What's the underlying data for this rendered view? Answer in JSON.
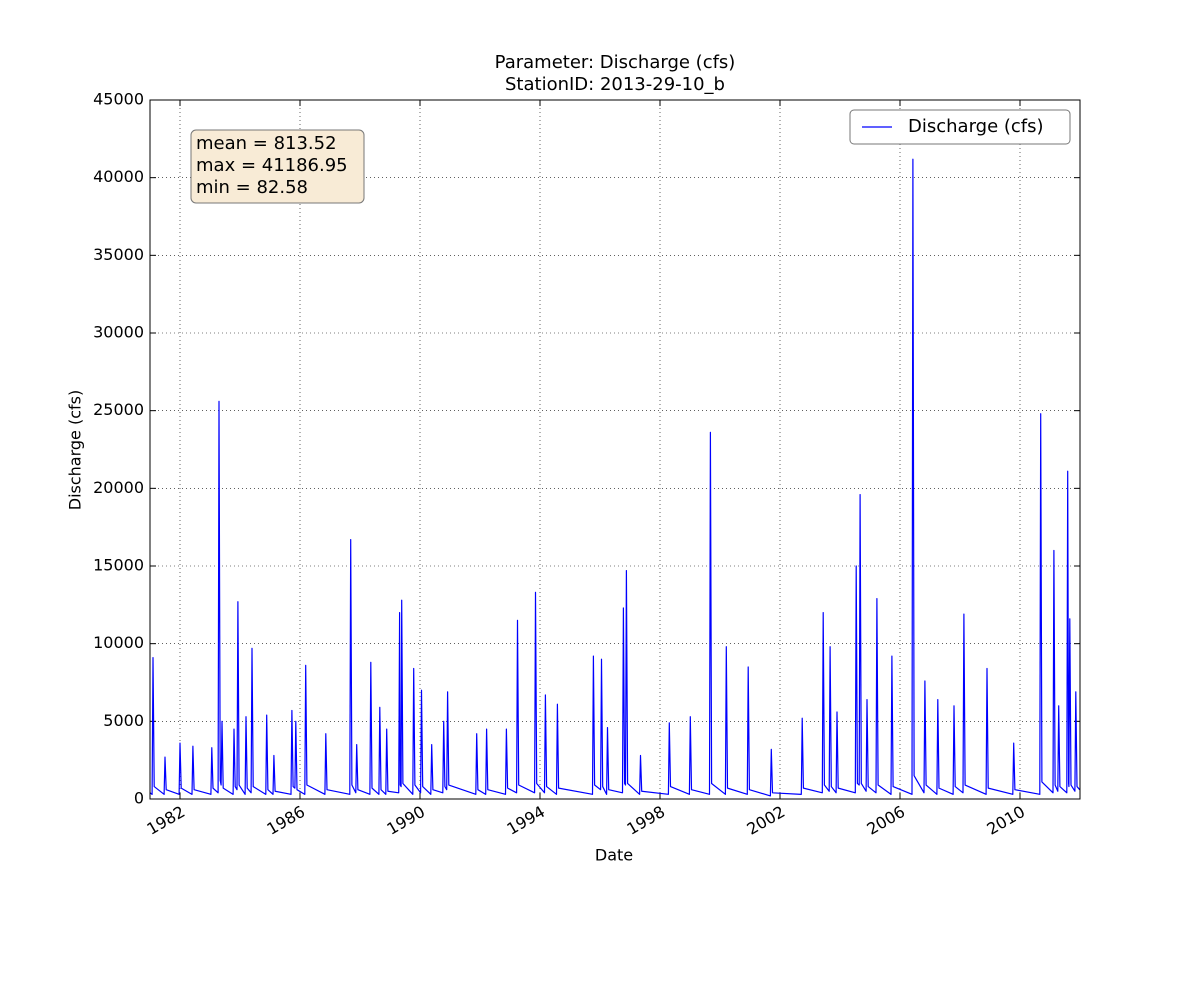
{
  "chart_data": {
    "type": "line",
    "title": "Parameter: Discharge (cfs)",
    "subtitle": "StationID: 2013-29-10_b",
    "x_label": "Date",
    "y_label": "Discharge (cfs)",
    "annotations": [
      "mean = 813.52",
      "max = 41186.95",
      "min = 82.58"
    ],
    "xlim": [
      1981.0,
      2012.0
    ],
    "xticks": [
      1982,
      1986,
      1990,
      1994,
      1998,
      2002,
      2006,
      2010
    ],
    "ylim": [
      0,
      45000
    ],
    "yticks": [
      0,
      5000,
      10000,
      15000,
      20000,
      25000,
      30000,
      35000,
      40000,
      45000
    ],
    "grid": true,
    "legend": "upper right",
    "x": [
      1981.0,
      1981.07,
      1981.1,
      1981.14,
      1981.47,
      1981.5,
      1981.54,
      1981.97,
      1982.0,
      1982.04,
      1982.4,
      1982.43,
      1982.47,
      1983.03,
      1983.06,
      1983.1,
      1983.27,
      1983.3,
      1983.34,
      1983.37,
      1983.4,
      1983.44,
      1983.77,
      1983.8,
      1983.84,
      1983.9,
      1983.93,
      1983.97,
      1984.17,
      1984.2,
      1984.24,
      1984.37,
      1984.4,
      1984.44,
      1984.86,
      1984.89,
      1984.93,
      1985.1,
      1985.13,
      1985.17,
      1985.7,
      1985.73,
      1985.77,
      1985.83,
      1985.86,
      1985.9,
      1986.16,
      1986.19,
      1986.23,
      1986.83,
      1986.86,
      1986.9,
      1987.66,
      1987.69,
      1987.73,
      1987.86,
      1987.89,
      1987.93,
      1988.33,
      1988.36,
      1988.4,
      1988.63,
      1988.66,
      1988.7,
      1988.86,
      1988.89,
      1988.93,
      1989.29,
      1989.32,
      1989.34,
      1989.37,
      1989.39,
      1989.43,
      1989.76,
      1989.79,
      1989.83,
      1990.02,
      1990.05,
      1990.09,
      1990.36,
      1990.39,
      1990.43,
      1990.76,
      1990.79,
      1990.83,
      1990.89,
      1990.92,
      1990.96,
      1991.86,
      1991.89,
      1991.93,
      1992.19,
      1992.22,
      1992.26,
      1992.85,
      1992.88,
      1992.92,
      1993.22,
      1993.25,
      1993.29,
      1993.82,
      1993.85,
      1993.89,
      1994.15,
      1994.18,
      1994.22,
      1994.55,
      1994.58,
      1994.62,
      1995.75,
      1995.78,
      1995.82,
      1996.02,
      1996.05,
      1996.09,
      1996.22,
      1996.25,
      1996.29,
      1996.75,
      1996.78,
      1996.82,
      1996.85,
      1996.88,
      1996.92,
      1997.32,
      1997.35,
      1997.39,
      1998.28,
      1998.31,
      1998.35,
      1998.98,
      1999.01,
      1999.05,
      1999.65,
      1999.68,
      1999.72,
      2000.18,
      2000.21,
      2000.25,
      2000.91,
      2000.94,
      2000.98,
      2001.68,
      2001.71,
      2001.75,
      2002.71,
      2002.74,
      2002.78,
      2003.41,
      2003.44,
      2003.48,
      2003.64,
      2003.67,
      2003.71,
      2003.87,
      2003.9,
      2003.94,
      2004.51,
      2004.54,
      2004.58,
      2004.64,
      2004.67,
      2004.71,
      2004.87,
      2004.9,
      2004.94,
      2005.2,
      2005.23,
      2005.27,
      2005.7,
      2005.73,
      2005.77,
      2006.4,
      2006.43,
      2006.47,
      2006.8,
      2006.83,
      2006.87,
      2007.23,
      2007.26,
      2007.3,
      2007.77,
      2007.8,
      2007.84,
      2008.1,
      2008.13,
      2008.17,
      2008.87,
      2008.9,
      2008.94,
      2009.76,
      2009.79,
      2009.83,
      2010.66,
      2010.69,
      2010.73,
      2011.1,
      2011.13,
      2011.17,
      2011.26,
      2011.29,
      2011.33,
      2011.56,
      2011.59,
      2011.62,
      2011.63,
      2011.66,
      2011.7,
      2011.83,
      2011.86,
      2011.9,
      2011.99
    ],
    "series": [
      {
        "name": "Discharge (cfs)",
        "color": "#0000ff",
        "values": [
          400,
          300,
          9100,
          800,
          300,
          2700,
          600,
          300,
          3600,
          700,
          300,
          3400,
          600,
          300,
          3300,
          700,
          400,
          25600,
          1200,
          900,
          5000,
          700,
          300,
          4500,
          800,
          600,
          12700,
          900,
          300,
          5300,
          700,
          400,
          9700,
          800,
          300,
          5400,
          600,
          300,
          2800,
          500,
          300,
          5700,
          800,
          700,
          5000,
          600,
          300,
          8600,
          900,
          300,
          4200,
          600,
          300,
          16700,
          900,
          400,
          3500,
          600,
          300,
          8800,
          700,
          300,
          5900,
          600,
          300,
          4500,
          500,
          400,
          12000,
          900,
          800,
          12800,
          1000,
          300,
          8400,
          900,
          400,
          7000,
          800,
          300,
          3500,
          600,
          400,
          5000,
          800,
          600,
          6900,
          900,
          300,
          4200,
          600,
          300,
          4500,
          600,
          300,
          4500,
          700,
          400,
          11500,
          900,
          400,
          13300,
          1000,
          400,
          6700,
          800,
          300,
          6100,
          700,
          300,
          9200,
          900,
          600,
          9000,
          800,
          300,
          4600,
          600,
          400,
          12300,
          1000,
          900,
          14700,
          1000,
          300,
          2800,
          500,
          300,
          4900,
          800,
          300,
          5300,
          600,
          300,
          23600,
          1000,
          300,
          9800,
          700,
          300,
          8500,
          600,
          200,
          3200,
          400,
          300,
          5200,
          700,
          400,
          12000,
          900,
          500,
          9800,
          800,
          400,
          5600,
          700,
          400,
          15000,
          1000,
          900,
          19600,
          1000,
          500,
          6400,
          800,
          400,
          12900,
          900,
          300,
          9200,
          800,
          300,
          41186.95,
          1500,
          400,
          7600,
          900,
          300,
          6400,
          700,
          300,
          6000,
          800,
          400,
          11900,
          900,
          300,
          8400,
          700,
          300,
          3600,
          600,
          300,
          24800,
          1100,
          400,
          16000,
          900,
          500,
          6000,
          800,
          400,
          21100,
          1000,
          800,
          11600,
          900,
          500,
          6900,
          800,
          600
        ]
      }
    ]
  }
}
